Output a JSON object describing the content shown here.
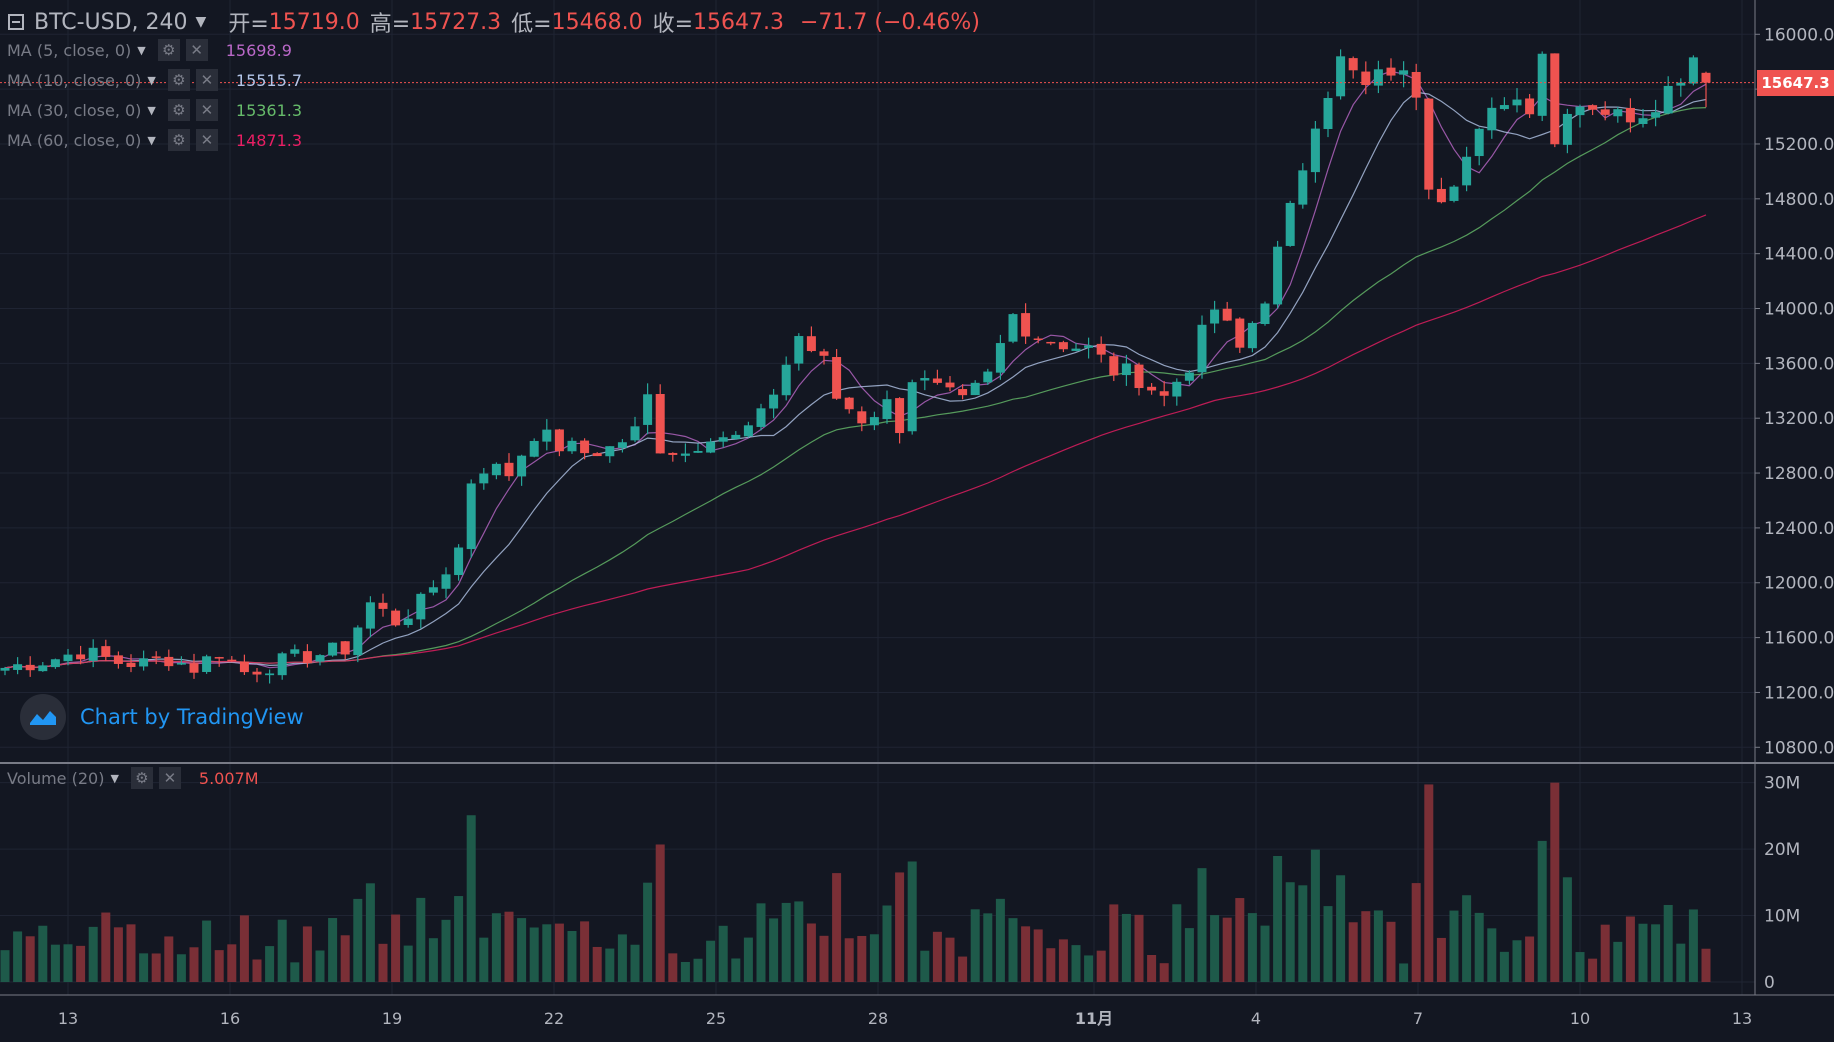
{
  "header": {
    "symbol": "BTC-USD, 240",
    "open_label": "开=",
    "open": "15719.0",
    "high_label": "高=",
    "high": "15727.3",
    "low_label": "低=",
    "low": "15468.0",
    "close_label": "收=",
    "close": "15647.3",
    "change": "−71.7 (−0.46%)"
  },
  "indicators": [
    {
      "label": "MA (5, close, 0)",
      "value": "15698.9",
      "color": "#ba68c8"
    },
    {
      "label": "MA (10, close, 0)",
      "value": "15515.7",
      "color": "#b3c5e8"
    },
    {
      "label": "MA (30, close, 0)",
      "value": "15361.3",
      "color": "#66bb6a"
    },
    {
      "label": "MA (60, close, 0)",
      "value": "14871.3",
      "color": "#e91e63"
    }
  ],
  "volume": {
    "label": "Volume (20)",
    "value": "5.007M"
  },
  "last_price": "15647.3",
  "watermark": "Chart by TradingView",
  "colors": {
    "background": "#131722",
    "up": "#26a69a",
    "down": "#ef5350",
    "vol_up": "#1e5a4a",
    "vol_down": "#7a2f36",
    "grid": "#1f2433"
  },
  "chart_data": {
    "type": "candlestick",
    "x_ticks": [
      "13",
      "16",
      "19",
      "22",
      "25",
      "28",
      "11月",
      "4",
      "7",
      "10",
      "13"
    ],
    "price_ticks": [
      "16000.0",
      "15600.0",
      "15200.0",
      "14800.0",
      "14400.0",
      "14000.0",
      "13600.0",
      "13200.0",
      "12800.0",
      "12400.0",
      "12000.0",
      "11600.0",
      "11200.0",
      "10800.0"
    ],
    "volume_ticks": [
      "30M",
      "20M",
      "10M",
      "0"
    ],
    "price_range": [
      10700,
      16250
    ],
    "volume_range": [
      0,
      31000000
    ],
    "ohlc_anchors": [
      [
        0,
        11380
      ],
      [
        4,
        11450
      ],
      [
        6,
        11500
      ],
      [
        9,
        11420
      ],
      [
        11,
        11410
      ],
      [
        13,
        11450
      ],
      [
        15,
        11380
      ],
      [
        17,
        11500
      ],
      [
        19,
        11350
      ],
      [
        21,
        11400
      ],
      [
        23,
        11450
      ],
      [
        25,
        11480
      ],
      [
        27,
        11520
      ],
      [
        29,
        11850
      ],
      [
        31,
        11720
      ],
      [
        33,
        11850
      ],
      [
        35,
        12100
      ],
      [
        36,
        12250
      ],
      [
        37,
        12750
      ],
      [
        38,
        12850
      ],
      [
        40,
        12800
      ],
      [
        42,
        13100
      ],
      [
        44,
        13000
      ],
      [
        46,
        12950
      ],
      [
        48,
        12980
      ],
      [
        50,
        13100
      ],
      [
        51,
        13350
      ],
      [
        52,
        13000
      ],
      [
        54,
        12950
      ],
      [
        56,
        13100
      ],
      [
        58,
        13050
      ],
      [
        60,
        13200
      ],
      [
        62,
        13600
      ],
      [
        63,
        13800
      ],
      [
        65,
        13600
      ],
      [
        66,
        13350
      ],
      [
        68,
        13200
      ],
      [
        70,
        13300
      ],
      [
        71,
        13150
      ],
      [
        72,
        13500
      ],
      [
        74,
        13400
      ],
      [
        76,
        13300
      ],
      [
        78,
        13500
      ],
      [
        80,
        13950
      ],
      [
        82,
        13800
      ],
      [
        84,
        13750
      ],
      [
        86,
        13700
      ],
      [
        88,
        13550
      ],
      [
        90,
        13500
      ],
      [
        92,
        13350
      ],
      [
        94,
        13600
      ],
      [
        96,
        14000
      ],
      [
        98,
        13700
      ],
      [
        100,
        14100
      ],
      [
        102,
        14700
      ],
      [
        104,
        15400
      ],
      [
        106,
        15800
      ],
      [
        107,
        15700
      ],
      [
        108,
        15600
      ],
      [
        110,
        15750
      ],
      [
        112,
        15600
      ],
      [
        113,
        14950
      ],
      [
        114,
        14850
      ],
      [
        116,
        15100
      ],
      [
        118,
        15400
      ],
      [
        119,
        15550
      ],
      [
        121,
        15500
      ],
      [
        122,
        15900
      ],
      [
        123,
        15200
      ],
      [
        124,
        15500
      ],
      [
        126,
        15500
      ],
      [
        128,
        15400
      ],
      [
        130,
        15450
      ],
      [
        132,
        15600
      ],
      [
        134,
        15850
      ],
      [
        135,
        15647.3
      ]
    ],
    "volume_notes": "Volume histogram per 4h candle, mostly 1M–10M with spikes to ~22M (Oct 22, Nov 6–8) and ~30M (Nov 10).",
    "moving_averages": [
      5,
      10,
      30,
      60
    ]
  }
}
